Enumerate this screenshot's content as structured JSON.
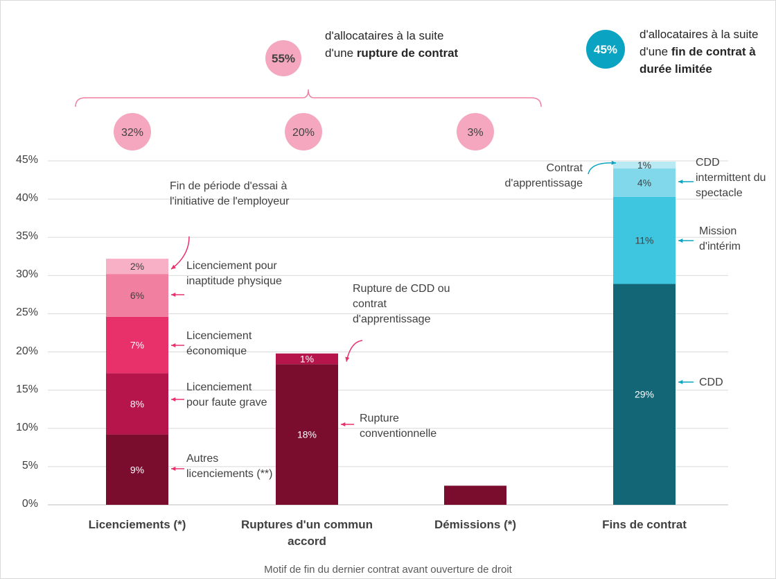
{
  "chart_data": {
    "type": "bar",
    "stacked": true,
    "xlabel": "Motif de fin du dernier contrat avant ouverture de droit",
    "categories": [
      "Licenciements (*)",
      "Ruptures d'un commun accord",
      "Démissions (*)",
      "Fins de contrat"
    ],
    "ylim": [
      0,
      45
    ],
    "yticks": [
      {
        "value": 0,
        "label": "0%"
      },
      {
        "value": 5,
        "label": "5%"
      },
      {
        "value": 10,
        "label": "10%"
      },
      {
        "value": 15,
        "label": "15%"
      },
      {
        "value": 20,
        "label": "20%"
      },
      {
        "value": 25,
        "label": "25%"
      },
      {
        "value": 30,
        "label": "30%"
      },
      {
        "value": 35,
        "label": "35%"
      },
      {
        "value": 40,
        "label": "40%"
      },
      {
        "value": 45,
        "label": "45%"
      }
    ],
    "grid": true,
    "stacks": [
      [
        {
          "name": "Autres licenciements (**)",
          "value": 9.2,
          "value_label": "9%",
          "color": "#7a0c2e"
        },
        {
          "name": "Licenciement pour faute grave",
          "value": 8.0,
          "value_label": "8%",
          "color": "#b5154a"
        },
        {
          "name": "Licenciement économique",
          "value": 7.4,
          "value_label": "7%",
          "color": "#e8316a"
        },
        {
          "name": "Licenciement pour inaptitude physique",
          "value": 5.6,
          "value_label": "6%",
          "color": "#f07fa0"
        },
        {
          "name": "Fin de période d'essai à l'initiative de l'employeur",
          "value": 2.0,
          "value_label": "2%",
          "color": "#f7b0c5"
        }
      ],
      [
        {
          "name": "Rupture conventionnelle",
          "value": 18.4,
          "value_label": "18%",
          "color": "#7a0c2e"
        },
        {
          "name": "Rupture de CDD ou contrat d'apprentissage",
          "value": 1.4,
          "value_label": "1%",
          "color": "#b5154a"
        }
      ],
      [
        {
          "value": 2.5,
          "color": "#7a0c2e"
        }
      ],
      [
        {
          "name": "CDD",
          "value": 28.9,
          "value_label": "29%",
          "color": "#136675"
        },
        {
          "name": "Mission d'intérim",
          "value": 11.4,
          "value_label": "11%",
          "color": "#3ec6e0"
        },
        {
          "name": "CDD intermittent du spectacle",
          "value": 3.7,
          "value_label": "4%",
          "color": "#80d8ea"
        },
        {
          "name": "Contrat d'apprentissage",
          "value": 0.9,
          "value_label": "1%",
          "color": "#b9e9f3"
        }
      ]
    ],
    "category_totals": [
      {
        "value": 32,
        "label": "32%"
      },
      {
        "value": 20,
        "label": "20%"
      },
      {
        "value": 3,
        "label": "3%"
      }
    ],
    "groups": [
      {
        "value": 55,
        "label": "55%",
        "text": "d'allocataires à la suite d'une",
        "emphasis": "rupture de contrat",
        "color": "#f4a7bf"
      },
      {
        "value": 45,
        "label": "45%",
        "text": "d'allocataires à la suite d'une",
        "emphasis": "fin de contrat à durée limitée",
        "color": "#0aa3c2"
      }
    ]
  }
}
